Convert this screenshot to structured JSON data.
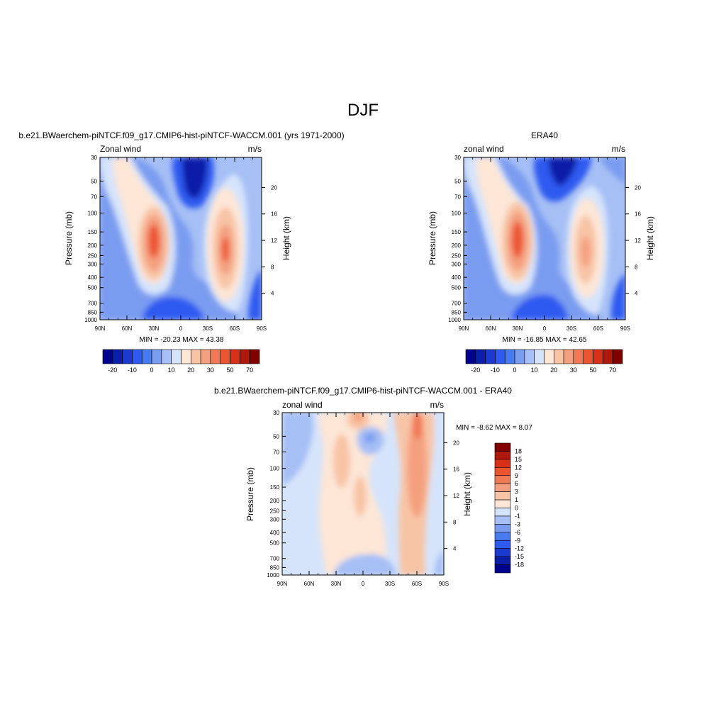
{
  "main_title": "DJF",
  "chart_data": [
    {
      "type": "heatmap",
      "title": "b.e21.BWaerchem-piNTCF.f09_g17.CMIP6-hist-piNTCF-WACCM.001 (yrs 1971-2000)",
      "subtitle_left": "Zonal wind",
      "subtitle_right": "m/s",
      "ylabel": "Pressure (mb)",
      "ylabel_right": "Height (km)",
      "x_ticks": [
        "90N",
        "60N",
        "30N",
        "0",
        "30S",
        "60S",
        "90S"
      ],
      "y_ticks": [
        "30",
        "50",
        "70",
        "100",
        "150",
        "200",
        "250",
        "300",
        "400",
        "500",
        "700",
        "850",
        "1000"
      ],
      "height_ticks": [
        "4",
        "8",
        "12",
        "16",
        "20"
      ],
      "stats": "MIN = -20.23  MAX =  43.38",
      "colorbar_labels": [
        "-20",
        "-10",
        "0",
        "10",
        "20",
        "30",
        "50",
        "70"
      ],
      "colorbar_colors": [
        "#00008f",
        "#0a1ea8",
        "#1a3ad0",
        "#2e5af0",
        "#4a7af0",
        "#7a9cf0",
        "#a6bff5",
        "#d6e4fb",
        "#fde6d6",
        "#f8c4a6",
        "#f4a080",
        "#f07a56",
        "#ec5430",
        "#d63018",
        "#b0180c",
        "#800000"
      ],
      "jets": [
        {
          "lat": 30,
          "pressure": 200,
          "speed": 43.38
        },
        {
          "lat": -45,
          "pressure": 200,
          "speed": 35
        },
        {
          "lat": 0,
          "pressure": 30,
          "speed": -20.23
        }
      ]
    },
    {
      "type": "heatmap",
      "title": "ERA40",
      "subtitle_left": "zonal wind",
      "subtitle_right": "m/s",
      "ylabel": "Pressure (mb)",
      "ylabel_right": "Height (km)",
      "x_ticks": [
        "90N",
        "60N",
        "30N",
        "0",
        "30S",
        "60S",
        "90S"
      ],
      "y_ticks": [
        "30",
        "50",
        "70",
        "100",
        "150",
        "200",
        "250",
        "300",
        "400",
        "500",
        "700",
        "850",
        "1000"
      ],
      "height_ticks": [
        "4",
        "8",
        "12",
        "16",
        "20"
      ],
      "stats": "MIN = -16.85  MAX =  42.65",
      "colorbar_labels": [
        "-20",
        "-10",
        "0",
        "10",
        "20",
        "30",
        "50",
        "70"
      ],
      "colorbar_colors": [
        "#00008f",
        "#0a1ea8",
        "#1a3ad0",
        "#2e5af0",
        "#4a7af0",
        "#7a9cf0",
        "#a6bff5",
        "#d6e4fb",
        "#fde6d6",
        "#f8c4a6",
        "#f4a080",
        "#f07a56",
        "#ec5430",
        "#d63018",
        "#b0180c",
        "#800000"
      ],
      "jets": [
        {
          "lat": 30,
          "pressure": 200,
          "speed": 42.65
        },
        {
          "lat": -45,
          "pressure": 200,
          "speed": 30
        },
        {
          "lat": 0,
          "pressure": 30,
          "speed": -16.85
        }
      ]
    },
    {
      "type": "heatmap",
      "title": "b.e21.BWaerchem-piNTCF.f09_g17.CMIP6-hist-piNTCF-WACCM.001 - ERA40",
      "subtitle_left": "zonal wind",
      "subtitle_right": "m/s",
      "ylabel": "Pressure (mb)",
      "ylabel_right": "Height (km)",
      "x_ticks": [
        "90N",
        "60N",
        "30N",
        "0",
        "30S",
        "60S",
        "90S"
      ],
      "y_ticks": [
        "30",
        "50",
        "70",
        "100",
        "150",
        "200",
        "250",
        "300",
        "400",
        "500",
        "700",
        "850",
        "1000"
      ],
      "height_ticks": [
        "4",
        "8",
        "12",
        "16",
        "20"
      ],
      "stats": "MIN =  -8.62  MAX =   8.07",
      "colorbar_labels": [
        "18",
        "15",
        "12",
        "9",
        "6",
        "3",
        "1",
        "0",
        "-1",
        "-3",
        "-6",
        "-9",
        "-12",
        "-15",
        "-18"
      ],
      "colorbar_colors": [
        "#800000",
        "#b0180c",
        "#d63018",
        "#ec5430",
        "#f07a56",
        "#f4a080",
        "#f8c4a6",
        "#fde6d6",
        "#d6e4fb",
        "#a6bff5",
        "#7a9cf0",
        "#4a7af0",
        "#2e5af0",
        "#1a3ad0",
        "#0a1ea8",
        "#00008f"
      ]
    }
  ]
}
